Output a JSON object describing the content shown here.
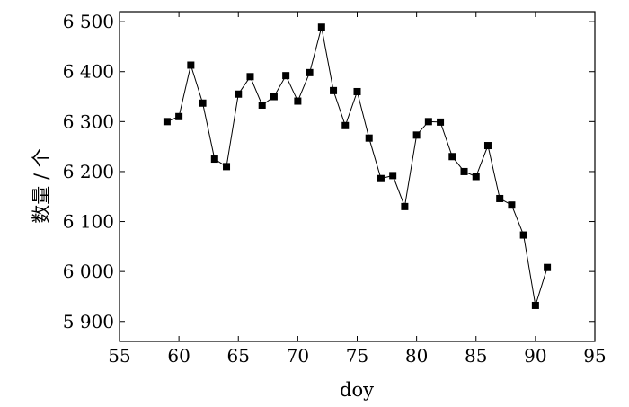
{
  "chart_data": {
    "type": "line",
    "title": "",
    "xlabel": "doy",
    "ylabel": "数量 / 个",
    "xlim": [
      55,
      95
    ],
    "ylim": [
      5860,
      6520
    ],
    "xticks": [
      55,
      60,
      65,
      70,
      75,
      80,
      85,
      90,
      95
    ],
    "xtick_labels": [
      "55",
      "60",
      "65",
      "70",
      "75",
      "80",
      "85",
      "90",
      "95"
    ],
    "yticks": [
      5900,
      6000,
      6100,
      6200,
      6300,
      6400,
      6500
    ],
    "ytick_labels": [
      "5 900",
      "6 000",
      "6 100",
      "6 200",
      "6 300",
      "6 400",
      "6 500"
    ],
    "grid": false,
    "legend": "none",
    "marker": "square",
    "colors": {
      "line": "#000000",
      "marker": "#000000",
      "axis": "#000000"
    },
    "series": [
      {
        "x": [
          59,
          60,
          61,
          62,
          63,
          64,
          65,
          66,
          67,
          68,
          69,
          70,
          71,
          72,
          73,
          74,
          75,
          76,
          77,
          78,
          79,
          80,
          81,
          82,
          83,
          84,
          85,
          86,
          87,
          88,
          89,
          90,
          91
        ],
        "values": [
          6300,
          6310,
          6413,
          6337,
          6225,
          6210,
          6355,
          6390,
          6333,
          6350,
          6392,
          6341,
          6398,
          6489,
          6362,
          6292,
          6360,
          6267,
          6186,
          6192,
          6130,
          6273,
          6300,
          6299,
          6230,
          6200,
          6190,
          6252,
          6146,
          6133,
          6073,
          5932,
          6008
        ]
      }
    ]
  }
}
